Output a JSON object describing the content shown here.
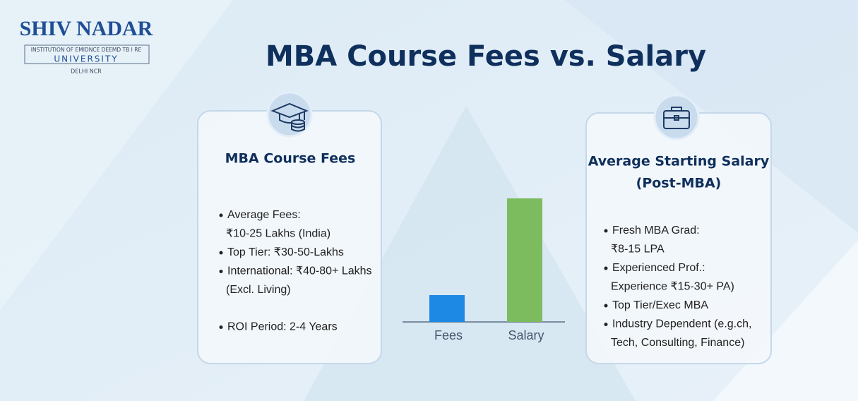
{
  "header": {
    "logo": {
      "name": "SHIV NADAR",
      "tagline": "INSTITUTION OF EMIDNCE DEEMD TB I RE",
      "university": "UNIVERSITY",
      "location": "DELHI NCR"
    },
    "title": "MBA Course Fees vs. Salary"
  },
  "fees_card": {
    "title": [
      "MBA Course Fees"
    ],
    "items": [
      [
        "Average Fees:",
        "₹10-25 Lakhs (India)"
      ],
      [
        "Top Tier: ₹30-50-Lakhs"
      ],
      [
        "International: ₹40-80+ Lakhs",
        "(Excl. Living)"
      ],
      [
        "ROI Period: 2-4 Years"
      ]
    ]
  },
  "salary_card": {
    "title": [
      "Average Starting Salary",
      "(Post-MBA)"
    ],
    "items": [
      [
        "Fresh MBA Grad:",
        "₹8-15 LPA"
      ],
      [
        "Experienced Prof.:",
        "Experience ₹15-30+ PA)"
      ],
      [
        "Top Tier/Exec MBA"
      ],
      [
        "Industry Dependent (e.g.ch,",
        "Tech, Consulting, Finance)"
      ]
    ]
  },
  "chart_data": {
    "type": "bar",
    "categories": [
      "Fees",
      "Salary"
    ],
    "values": [
      38,
      175
    ],
    "colors": [
      "#1e88e5",
      "#7cbb5e"
    ],
    "ylim": [
      0,
      175
    ]
  }
}
